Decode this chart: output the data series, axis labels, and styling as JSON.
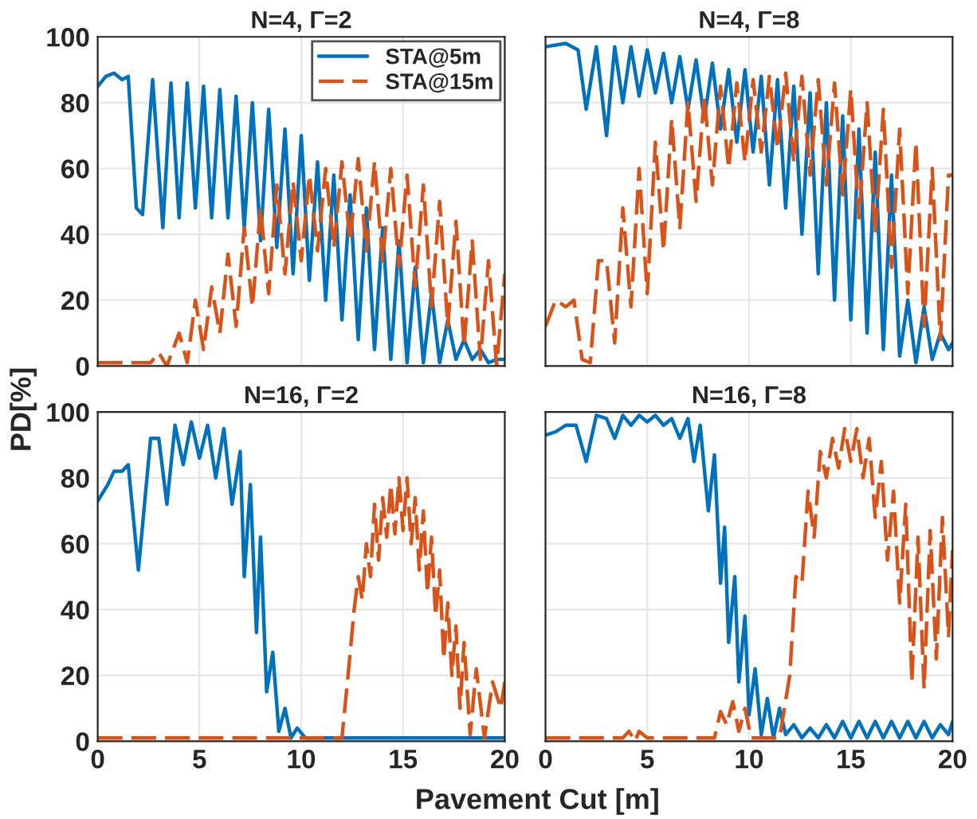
{
  "chart_data": [
    {
      "type": "line",
      "title": "N=4, Γ=2",
      "ylabel": "PD[%]",
      "xlim": [
        0,
        20
      ],
      "ylim": [
        0,
        100
      ],
      "xticks": [
        0,
        5,
        10,
        15,
        20
      ],
      "yticks": [
        0,
        20,
        40,
        60,
        80,
        100
      ],
      "grid": true,
      "legend": "top right",
      "tick_labels": "y",
      "series": [
        {
          "name": "STA@5m",
          "color": "#0072bd",
          "line_style": "solid",
          "x": [
            0,
            0.4,
            0.8,
            1.2,
            1.5,
            1.9,
            2.2,
            2.7,
            3.2,
            3.6,
            4.0,
            4.4,
            4.8,
            5.2,
            5.6,
            6.0,
            6.4,
            6.8,
            7.2,
            7.6,
            8.0,
            8.4,
            8.8,
            9.2,
            9.6,
            10.0,
            10.4,
            10.8,
            11.2,
            11.6,
            12.0,
            12.4,
            12.8,
            13.2,
            13.6,
            14.0,
            14.4,
            14.8,
            15.2,
            15.6,
            16.0,
            16.4,
            16.8,
            17.2,
            17.6,
            18.0,
            18.4,
            18.8,
            19.2,
            19.6,
            20
          ],
          "values": [
            85,
            88,
            89,
            87,
            88,
            48,
            46,
            87,
            42,
            86,
            45,
            86,
            48,
            85,
            45,
            84,
            45,
            82,
            42,
            80,
            38,
            78,
            36,
            72,
            28,
            70,
            26,
            62,
            20,
            58,
            14,
            52,
            8,
            48,
            5,
            42,
            2,
            38,
            1,
            30,
            1,
            22,
            1,
            14,
            2,
            8,
            2,
            5,
            1,
            2,
            2
          ]
        },
        {
          "name": "STA@15m",
          "color": "#d95319",
          "line_style": "dashed",
          "x": [
            0,
            2,
            2.6,
            3,
            3.4,
            4.0,
            4.4,
            4.8,
            5.2,
            5.6,
            6.0,
            6.4,
            6.8,
            7.2,
            7.6,
            8.0,
            8.4,
            8.8,
            9.2,
            9.6,
            10.0,
            10.4,
            10.8,
            11.2,
            11.6,
            12.0,
            12.4,
            12.8,
            13.2,
            13.6,
            14,
            14.4,
            14.8,
            15.2,
            15.6,
            16,
            16.4,
            16.8,
            17.2,
            17.6,
            18,
            18.4,
            18.8,
            19.2,
            19.6,
            20
          ],
          "values": [
            1,
            1,
            1,
            4,
            0,
            10,
            1,
            20,
            5,
            24,
            10,
            34,
            12,
            42,
            18,
            48,
            22,
            55,
            28,
            56,
            32,
            58,
            35,
            60,
            36,
            62,
            38,
            63,
            35,
            62,
            32,
            60,
            30,
            58,
            24,
            55,
            18,
            50,
            12,
            44,
            6,
            38,
            2,
            32,
            0,
            28
          ]
        }
      ]
    },
    {
      "type": "line",
      "title": "N=4, Γ=8",
      "xlim": [
        0,
        20
      ],
      "ylim": [
        0,
        100
      ],
      "xticks": [
        0,
        5,
        10,
        15,
        20
      ],
      "yticks": [
        0,
        20,
        40,
        60,
        80,
        100
      ],
      "grid": true,
      "tick_labels": false,
      "series": [
        {
          "color": "#0072bd",
          "line_style": "solid",
          "x": [
            0,
            1,
            1.6,
            2,
            2.5,
            3,
            3.4,
            3.8,
            4.2,
            4.6,
            5,
            5.4,
            5.8,
            6.2,
            6.6,
            7,
            7.4,
            7.8,
            8.2,
            8.6,
            9,
            9.4,
            9.8,
            10.2,
            10.6,
            11,
            11.4,
            11.8,
            12.2,
            12.6,
            13,
            13.4,
            13.8,
            14.2,
            14.6,
            15,
            15.4,
            15.8,
            16.2,
            16.6,
            17,
            17.4,
            17.8,
            18.2,
            18.6,
            19,
            19.4,
            19.8,
            20
          ],
          "values": [
            97,
            98,
            96,
            78,
            97,
            70,
            97,
            80,
            97,
            82,
            96,
            83,
            95,
            80,
            94,
            78,
            93,
            75,
            92,
            72,
            90,
            68,
            90,
            65,
            88,
            55,
            87,
            48,
            85,
            40,
            83,
            28,
            80,
            20,
            76,
            14,
            72,
            10,
            65,
            5,
            58,
            3,
            20,
            1,
            18,
            2,
            10,
            5,
            7
          ]
        },
        {
          "color": "#d95319",
          "line_style": "dashed",
          "x": [
            0,
            0.5,
            1,
            1.4,
            1.8,
            2.2,
            2.6,
            3.0,
            3.4,
            3.8,
            4.2,
            4.6,
            5,
            5.4,
            5.8,
            6.2,
            6.6,
            7,
            7.4,
            7.8,
            8.2,
            8.6,
            9,
            9.4,
            9.8,
            10.2,
            10.6,
            11,
            11.4,
            11.8,
            12.2,
            12.6,
            13,
            13.4,
            13.8,
            14.2,
            14.6,
            15,
            15.4,
            15.8,
            16.2,
            16.6,
            17,
            17.4,
            17.8,
            18.2,
            18.6,
            19,
            19.4,
            19.8,
            20
          ],
          "values": [
            12,
            20,
            18,
            20,
            2,
            1,
            32,
            32,
            7,
            48,
            18,
            60,
            22,
            68,
            35,
            75,
            42,
            80,
            50,
            82,
            55,
            85,
            60,
            86,
            62,
            87,
            65,
            88,
            66,
            89,
            62,
            88,
            58,
            87,
            55,
            86,
            52,
            84,
            45,
            80,
            40,
            78,
            30,
            72,
            22,
            68,
            12,
            60,
            8,
            58,
            58
          ]
        }
      ]
    },
    {
      "type": "line",
      "title": "N=16, Γ=2",
      "xlabel": "Pavement Cut [m]",
      "xlim": [
        0,
        20
      ],
      "ylim": [
        0,
        100
      ],
      "xticks": [
        0,
        5,
        10,
        15,
        20
      ],
      "yticks": [
        0,
        20,
        40,
        60,
        80,
        100
      ],
      "grid": true,
      "series": [
        {
          "color": "#0072bd",
          "line_style": "solid",
          "x": [
            0,
            0.5,
            0.8,
            1.2,
            1.5,
            2,
            2.6,
            3,
            3.4,
            3.8,
            4.2,
            4.6,
            5,
            5.4,
            5.8,
            6.2,
            6.6,
            7,
            7.2,
            7.5,
            7.8,
            8.0,
            8.3,
            8.6,
            8.9,
            9.2,
            9.5,
            9.8,
            10.2,
            10.5,
            12,
            20
          ],
          "values": [
            73,
            78,
            82,
            82,
            84,
            52,
            92,
            92,
            72,
            96,
            84,
            97,
            86,
            96,
            80,
            95,
            72,
            88,
            50,
            78,
            33,
            62,
            15,
            27,
            3,
            10,
            1,
            4,
            1,
            1,
            1,
            1
          ]
        },
        {
          "color": "#d95319",
          "line_style": "dashed",
          "x": [
            0,
            12,
            12.3,
            12.6,
            12.8,
            13,
            13.2,
            13.4,
            13.6,
            13.8,
            14.0,
            14.2,
            14.4,
            14.6,
            14.8,
            15.0,
            15.2,
            15.4,
            15.6,
            15.8,
            16,
            16.2,
            16.4,
            16.6,
            16.8,
            17,
            17.2,
            17.4,
            17.6,
            17.8,
            18,
            18.3,
            18.6,
            19,
            19.4,
            19.8,
            20
          ],
          "values": [
            1,
            1,
            20,
            40,
            50,
            43,
            60,
            50,
            72,
            55,
            74,
            62,
            78,
            63,
            80,
            64,
            80,
            60,
            74,
            52,
            70,
            45,
            62,
            38,
            52,
            25,
            42,
            20,
            35,
            10,
            30,
            2,
            22,
            1,
            18,
            10,
            18
          ]
        }
      ]
    },
    {
      "type": "line",
      "title": "N=16, Γ=8",
      "xlim": [
        0,
        20
      ],
      "ylim": [
        0,
        100
      ],
      "xticks": [
        0,
        5,
        10,
        15,
        20
      ],
      "yticks": [
        0,
        20,
        40,
        60,
        80,
        100
      ],
      "grid": true,
      "tick_labels": "x",
      "series": [
        {
          "color": "#0072bd",
          "line_style": "solid",
          "x": [
            0,
            0.5,
            1,
            1.5,
            2,
            2.5,
            3,
            3.4,
            3.8,
            4.2,
            4.6,
            5,
            5.4,
            5.8,
            6.2,
            6.6,
            7.0,
            7.3,
            7.6,
            8,
            8.3,
            8.6,
            8.8,
            9,
            9.3,
            9.5,
            9.8,
            10,
            10.3,
            10.6,
            10.9,
            11.2,
            11.5,
            11.8,
            12.2,
            12.6,
            13,
            13.4,
            13.8,
            14.2,
            14.6,
            15,
            15.4,
            15.8,
            16.2,
            16.6,
            17,
            17.4,
            17.8,
            18.2,
            18.6,
            19,
            19.4,
            19.8,
            20
          ],
          "values": [
            93,
            94,
            96,
            96,
            85,
            99,
            98,
            92,
            99,
            96,
            99,
            97,
            99,
            96,
            98,
            92,
            98,
            85,
            96,
            70,
            87,
            48,
            65,
            30,
            50,
            18,
            38,
            8,
            22,
            2,
            13,
            1,
            10,
            2,
            5,
            1,
            4,
            1,
            5,
            1,
            6,
            1,
            6,
            1,
            6,
            1,
            6,
            1,
            6,
            1,
            6,
            1,
            5,
            2,
            6
          ]
        },
        {
          "color": "#d95319",
          "line_style": "dashed",
          "x": [
            0,
            3.8,
            4.1,
            4.4,
            4.6,
            5,
            8.3,
            8.6,
            8.9,
            9.2,
            9.5,
            9.8,
            10.1,
            11.5,
            12,
            12.3,
            12.6,
            12.9,
            13.2,
            13.5,
            13.8,
            14.1,
            14.4,
            14.7,
            15,
            15.3,
            15.6,
            15.9,
            16.2,
            16.5,
            16.8,
            17.1,
            17.4,
            17.7,
            18,
            18.3,
            18.6,
            18.9,
            19.2,
            19.5,
            19.8,
            20
          ],
          "values": [
            1,
            1,
            3,
            0,
            3,
            1,
            1,
            9,
            5,
            12,
            3,
            10,
            1,
            1,
            20,
            50,
            48,
            76,
            62,
            88,
            80,
            92,
            83,
            95,
            85,
            95,
            80,
            92,
            68,
            85,
            55,
            76,
            42,
            72,
            18,
            62,
            16,
            64,
            25,
            68,
            32,
            58
          ]
        }
      ]
    }
  ]
}
